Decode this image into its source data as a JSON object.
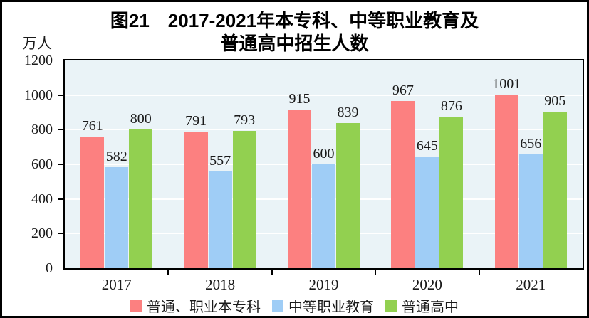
{
  "title": {
    "line1": "图21　2017-2021年本专科、中等职业教育及",
    "line2": "普通高中招生人数"
  },
  "chart_data": {
    "type": "bar",
    "title": "图21 2017-2021年本专科、中等职业教育及普通高中招生人数",
    "unit_label": "万人",
    "xlabel": "",
    "ylabel": "万人",
    "categories": [
      "2017",
      "2018",
      "2019",
      "2020",
      "2021"
    ],
    "series": [
      {
        "name": "普通、职业本专科",
        "color": "#FC8080",
        "values": [
          761,
          791,
          915,
          967,
          1001
        ]
      },
      {
        "name": "中等职业教育",
        "color": "#9FCDF6",
        "values": [
          582,
          557,
          600,
          645,
          656
        ]
      },
      {
        "name": "普通高中",
        "color": "#92D050",
        "values": [
          800,
          793,
          839,
          876,
          905
        ]
      }
    ],
    "ylim": [
      0,
      1200
    ],
    "ytick_step": 200,
    "yticks": [
      0,
      200,
      400,
      600,
      800,
      1000,
      1200
    ],
    "grid": true,
    "gridline_color": "#FFFFFF",
    "plot_bg": "#EAF3F7",
    "legend_position": "bottom"
  }
}
